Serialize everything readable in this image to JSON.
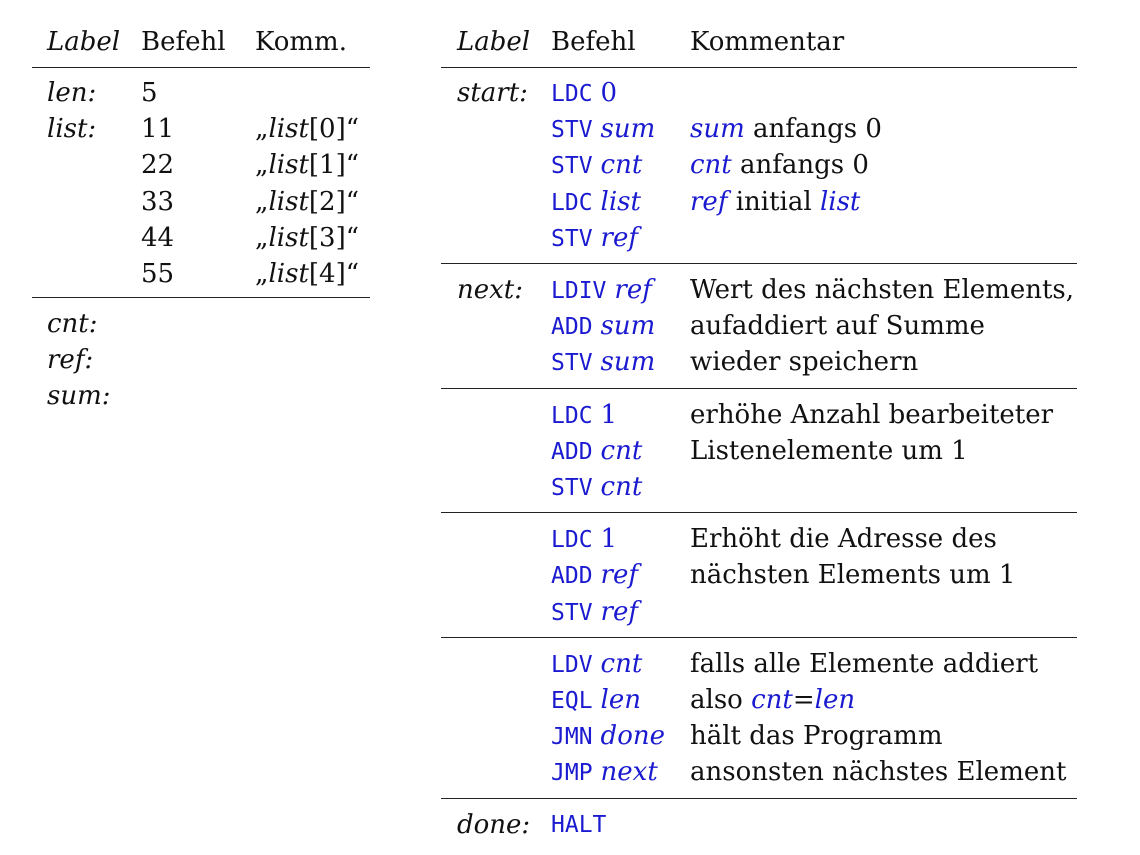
{
  "left_table": {
    "headers": {
      "label": "Label",
      "befehl": "Befehl",
      "komm": "Komm."
    },
    "rows": [
      {
        "label": "len:",
        "value": "5",
        "comment_pre": "",
        "comment_it": "",
        "comment_post": ""
      },
      {
        "label": "list:",
        "value": "11",
        "comment_pre": "„",
        "comment_it": "list",
        "comment_post": "[0]“"
      },
      {
        "label": "",
        "value": "22",
        "comment_pre": "„",
        "comment_it": "list",
        "comment_post": "[1]“"
      },
      {
        "label": "",
        "value": "33",
        "comment_pre": "„",
        "comment_it": "list",
        "comment_post": "[2]“"
      },
      {
        "label": "",
        "value": "44",
        "comment_pre": "„",
        "comment_it": "list",
        "comment_post": "[3]“"
      },
      {
        "label": "",
        "value": "55",
        "comment_pre": "„",
        "comment_it": "list",
        "comment_post": "[4]“"
      }
    ],
    "vars": [
      "cnt:",
      "ref:",
      "sum:"
    ]
  },
  "right_table": {
    "headers": {
      "label": "Label",
      "befehl": "Befehl",
      "kommentar": "Kommentar"
    },
    "blocks": [
      {
        "label": "start:",
        "rows": [
          {
            "op": "LDC",
            "arg": "0",
            "arg_italic": false,
            "comment": []
          },
          {
            "op": "STV",
            "arg": "sum",
            "arg_italic": true,
            "comment": [
              {
                "t": "sum",
                "c": "bi"
              },
              {
                "t": " anfangs 0",
                "c": ""
              }
            ]
          },
          {
            "op": "STV",
            "arg": "cnt",
            "arg_italic": true,
            "comment": [
              {
                "t": "cnt",
                "c": "bi"
              },
              {
                "t": " anfangs 0",
                "c": ""
              }
            ]
          },
          {
            "op": "LDC",
            "arg": "list",
            "arg_italic": true,
            "comment": [
              {
                "t": "ref",
                "c": "bi"
              },
              {
                "t": " initial ",
                "c": ""
              },
              {
                "t": "list",
                "c": "bi"
              }
            ]
          },
          {
            "op": "STV",
            "arg": "ref",
            "arg_italic": true,
            "comment": []
          }
        ]
      },
      {
        "label": "next:",
        "rows": [
          {
            "op": "LDIV",
            "arg": "ref",
            "arg_italic": true,
            "comment": [
              {
                "t": "Wert des nächsten Elements,",
                "c": ""
              }
            ]
          },
          {
            "op": "ADD",
            "arg": "sum",
            "arg_italic": true,
            "comment": [
              {
                "t": "aufaddiert auf Summe",
                "c": ""
              }
            ]
          },
          {
            "op": "STV",
            "arg": "sum",
            "arg_italic": true,
            "comment": [
              {
                "t": "wieder speichern",
                "c": ""
              }
            ]
          }
        ]
      },
      {
        "label": "",
        "rows": [
          {
            "op": "LDC",
            "arg": "1",
            "arg_italic": false,
            "comment": [
              {
                "t": "erhöhe Anzahl bearbeiteter",
                "c": ""
              }
            ]
          },
          {
            "op": "ADD",
            "arg": "cnt",
            "arg_italic": true,
            "comment": [
              {
                "t": "Listenelemente um 1",
                "c": ""
              }
            ]
          },
          {
            "op": "STV",
            "arg": "cnt",
            "arg_italic": true,
            "comment": []
          }
        ]
      },
      {
        "label": "",
        "rows": [
          {
            "op": "LDC",
            "arg": "1",
            "arg_italic": false,
            "comment": [
              {
                "t": "Erhöht die Adresse des",
                "c": ""
              }
            ]
          },
          {
            "op": "ADD",
            "arg": "ref",
            "arg_italic": true,
            "comment": [
              {
                "t": "nächsten Elements um 1",
                "c": ""
              }
            ]
          },
          {
            "op": "STV",
            "arg": "ref",
            "arg_italic": true,
            "comment": []
          }
        ]
      },
      {
        "label": "",
        "rows": [
          {
            "op": "LDV",
            "arg": "cnt",
            "arg_italic": true,
            "comment": [
              {
                "t": "falls alle Elemente addiert",
                "c": ""
              }
            ]
          },
          {
            "op": "EQL",
            "arg": "len",
            "arg_italic": true,
            "comment": [
              {
                "t": "also ",
                "c": ""
              },
              {
                "t": "cnt",
                "c": "bi"
              },
              {
                "t": "=",
                "c": ""
              },
              {
                "t": "len",
                "c": "bi"
              }
            ]
          },
          {
            "op": "JMN",
            "arg": "done",
            "arg_italic": true,
            "comment": [
              {
                "t": "hält das Programm",
                "c": ""
              }
            ]
          },
          {
            "op": "JMP",
            "arg": "next",
            "arg_italic": true,
            "comment": [
              {
                "t": "ansonsten nächstes Element",
                "c": ""
              }
            ]
          }
        ]
      },
      {
        "label": "done:",
        "rows": [
          {
            "op": "HALT",
            "arg": "",
            "arg_italic": false,
            "comment": []
          }
        ]
      }
    ]
  }
}
